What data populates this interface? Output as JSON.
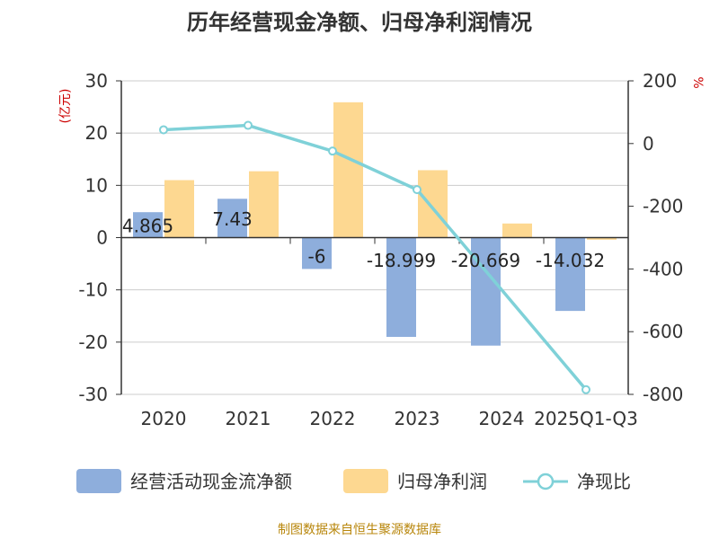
{
  "chart_data": {
    "type": "bar+line",
    "title": "历年经营现金净额、归母净利润情况",
    "categories": [
      "2020",
      "2021",
      "2022",
      "2023",
      "2024",
      "2025Q1-Q3"
    ],
    "series": [
      {
        "name": "经营活动现金流净额",
        "axis": "left",
        "kind": "bar",
        "color": "#8eaedc",
        "values": [
          4.865,
          7.43,
          -6,
          -18.999,
          -20.669,
          -14.032
        ],
        "data_labels": [
          "4.865",
          "7.43",
          "-6",
          "-18.999",
          "-20.669",
          "-14.032"
        ]
      },
      {
        "name": "归母净利润",
        "axis": "left",
        "kind": "bar",
        "color": "#fdd891",
        "values": [
          11,
          12.7,
          25.9,
          12.9,
          2.7,
          -0.4
        ]
      },
      {
        "name": "净现比",
        "axis": "right",
        "kind": "line",
        "color": "#7fd1d8",
        "values": [
          44,
          58,
          -24,
          -147,
          null,
          -785
        ]
      }
    ],
    "left_axis": {
      "unit_label": "(亿元)",
      "min": -30,
      "max": 30,
      "ticks": [
        "30",
        "20",
        "10",
        "0",
        "-10",
        "-20",
        "-30"
      ],
      "tick_values": [
        30,
        20,
        10,
        0,
        -10,
        -20,
        -30
      ]
    },
    "right_axis": {
      "unit_label": "%",
      "min": -800,
      "max": 200,
      "ticks": [
        "200",
        "0",
        "-200",
        "-400",
        "-600",
        "-800"
      ],
      "tick_values": [
        200,
        0,
        -200,
        -400,
        -600,
        -800
      ]
    },
    "source_text": "制图数据来自恒生聚源数据库",
    "colors": {
      "unit_label": "#cc0000",
      "grid": "#cccccc",
      "axis": "#333333",
      "source": "#b8860b"
    }
  }
}
